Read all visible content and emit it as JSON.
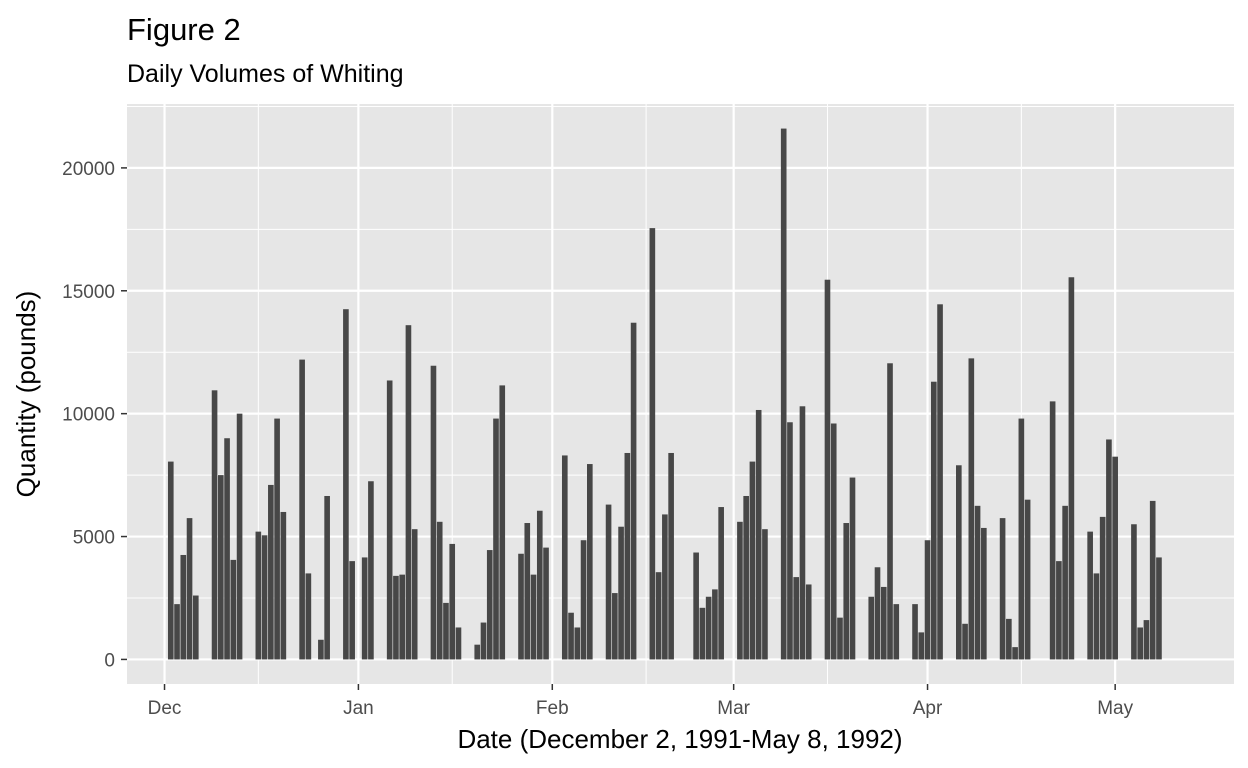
{
  "chart_data": {
    "type": "bar",
    "title": "Figure 2",
    "subtitle": "Daily Volumes of Whiting",
    "xlabel": "Date (December 2, 1991-May 8, 1992)",
    "ylabel": "Quantity (pounds)",
    "ylim": [
      -1000,
      22600
    ],
    "yticks": [
      0,
      5000,
      10000,
      15000,
      20000
    ],
    "xlim": [
      "1991-11-25",
      "1992-05-20"
    ],
    "xticks": [
      {
        "label": "Dec",
        "date": "1991-12-01"
      },
      {
        "label": "Jan",
        "date": "1992-01-01"
      },
      {
        "label": "Feb",
        "date": "1992-02-01"
      },
      {
        "label": "Mar",
        "date": "1992-03-01"
      },
      {
        "label": "Apr",
        "date": "1992-04-01"
      },
      {
        "label": "May",
        "date": "1992-05-01"
      }
    ],
    "minor_gridlines": [
      "1991-12-16",
      "1992-01-16",
      "1992-02-16",
      "1992-03-16",
      "1992-04-16"
    ],
    "grid": true,
    "bar_color": "#474747",
    "panel_color": "#e6e6e6",
    "grid_color": "#ffffff",
    "x": [
      "1991-12-02",
      "1991-12-03",
      "1991-12-04",
      "1991-12-05",
      "1991-12-06",
      "1991-12-09",
      "1991-12-10",
      "1991-12-11",
      "1991-12-12",
      "1991-12-13",
      "1991-12-16",
      "1991-12-17",
      "1991-12-18",
      "1991-12-19",
      "1991-12-20",
      "1991-12-23",
      "1991-12-24",
      "1991-12-26",
      "1991-12-27",
      "1991-12-30",
      "1991-12-31",
      "1992-01-02",
      "1992-01-03",
      "1992-01-06",
      "1992-01-07",
      "1992-01-08",
      "1992-01-09",
      "1992-01-10",
      "1992-01-13",
      "1992-01-14",
      "1992-01-15",
      "1992-01-16",
      "1992-01-17",
      "1992-01-20",
      "1992-01-21",
      "1992-01-22",
      "1992-01-23",
      "1992-01-24",
      "1992-01-27",
      "1992-01-28",
      "1992-01-29",
      "1992-01-30",
      "1992-01-31",
      "1992-02-03",
      "1992-02-04",
      "1992-02-05",
      "1992-02-06",
      "1992-02-07",
      "1992-02-10",
      "1992-02-11",
      "1992-02-12",
      "1992-02-13",
      "1992-02-14",
      "1992-02-17",
      "1992-02-18",
      "1992-02-19",
      "1992-02-20",
      "1992-02-21",
      "1992-02-24",
      "1992-02-25",
      "1992-02-26",
      "1992-02-27",
      "1992-02-28",
      "1992-03-02",
      "1992-03-03",
      "1992-03-04",
      "1992-03-05",
      "1992-03-06",
      "1992-03-09",
      "1992-03-10",
      "1992-03-11",
      "1992-03-12",
      "1992-03-13",
      "1992-03-16",
      "1992-03-17",
      "1992-03-18",
      "1992-03-19",
      "1992-03-20",
      "1992-03-23",
      "1992-03-24",
      "1992-03-25",
      "1992-03-26",
      "1992-03-27",
      "1992-03-30",
      "1992-03-31",
      "1992-04-01",
      "1992-04-02",
      "1992-04-03",
      "1992-04-06",
      "1992-04-07",
      "1992-04-08",
      "1992-04-09",
      "1992-04-10",
      "1992-04-13",
      "1992-04-14",
      "1992-04-15",
      "1992-04-16",
      "1992-04-17",
      "1992-04-21",
      "1992-04-22",
      "1992-04-23",
      "1992-04-24",
      "1992-04-27",
      "1992-04-28",
      "1992-04-29",
      "1992-04-30",
      "1992-05-01",
      "1992-05-04",
      "1992-05-05",
      "1992-05-06",
      "1992-05-07",
      "1992-05-08"
    ],
    "values": [
      8050,
      2250,
      4250,
      5750,
      2600,
      10950,
      7500,
      9000,
      4050,
      10000,
      5200,
      5050,
      7100,
      9800,
      6000,
      12200,
      3500,
      800,
      6650,
      14250,
      4000,
      4150,
      7250,
      11350,
      3400,
      3450,
      13600,
      5300,
      11950,
      5600,
      2300,
      4700,
      1300,
      600,
      1500,
      4450,
      9800,
      11150,
      4300,
      5550,
      3450,
      6050,
      4550,
      8300,
      1900,
      1300,
      4850,
      7950,
      6300,
      2700,
      5400,
      8400,
      13700,
      17550,
      3550,
      5900,
      8400,
      0,
      4350,
      2100,
      2550,
      2850,
      6200,
      5600,
      6650,
      8050,
      10150,
      5300,
      21600,
      9650,
      3350,
      10300,
      3050,
      15450,
      9600,
      1700,
      5550,
      7400,
      2550,
      3750,
      2950,
      12050,
      2250,
      2250,
      1100,
      4850,
      11300,
      14450,
      7900,
      1450,
      12250,
      6250,
      5350,
      5750,
      1650,
      500,
      9800,
      6500,
      10500,
      4000,
      6250,
      15550,
      5200,
      3500,
      5800,
      8950,
      8250,
      5500,
      1300,
      1600,
      6450,
      4150
    ]
  }
}
